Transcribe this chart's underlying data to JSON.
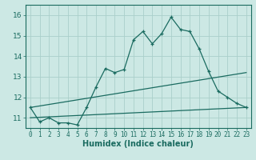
{
  "xlabel": "Humidex (Indice chaleur)",
  "xlim": [
    -0.5,
    23.5
  ],
  "ylim": [
    10.5,
    16.5
  ],
  "yticks": [
    11,
    12,
    13,
    14,
    15,
    16
  ],
  "xticks": [
    0,
    1,
    2,
    3,
    4,
    5,
    6,
    7,
    8,
    9,
    10,
    11,
    12,
    13,
    14,
    15,
    16,
    17,
    18,
    19,
    20,
    21,
    22,
    23
  ],
  "bg_color": "#cce8e4",
  "line_color": "#1a6b60",
  "grid_color": "#aacfca",
  "main_series": [
    [
      0,
      11.5
    ],
    [
      1,
      10.8
    ],
    [
      2,
      11.0
    ],
    [
      3,
      10.75
    ],
    [
      4,
      10.75
    ],
    [
      5,
      10.65
    ],
    [
      6,
      11.5
    ],
    [
      7,
      12.5
    ],
    [
      8,
      13.4
    ],
    [
      9,
      13.2
    ],
    [
      10,
      13.35
    ],
    [
      11,
      14.8
    ],
    [
      12,
      15.2
    ],
    [
      13,
      14.6
    ],
    [
      14,
      15.1
    ],
    [
      15,
      15.9
    ],
    [
      16,
      15.3
    ],
    [
      17,
      15.2
    ],
    [
      18,
      14.35
    ],
    [
      19,
      13.25
    ],
    [
      20,
      12.3
    ],
    [
      21,
      12.0
    ],
    [
      22,
      11.7
    ],
    [
      23,
      11.5
    ]
  ],
  "line2": [
    [
      0,
      11.5
    ],
    [
      23,
      13.2
    ]
  ],
  "line3": [
    [
      0,
      11.0
    ],
    [
      23,
      11.5
    ]
  ]
}
